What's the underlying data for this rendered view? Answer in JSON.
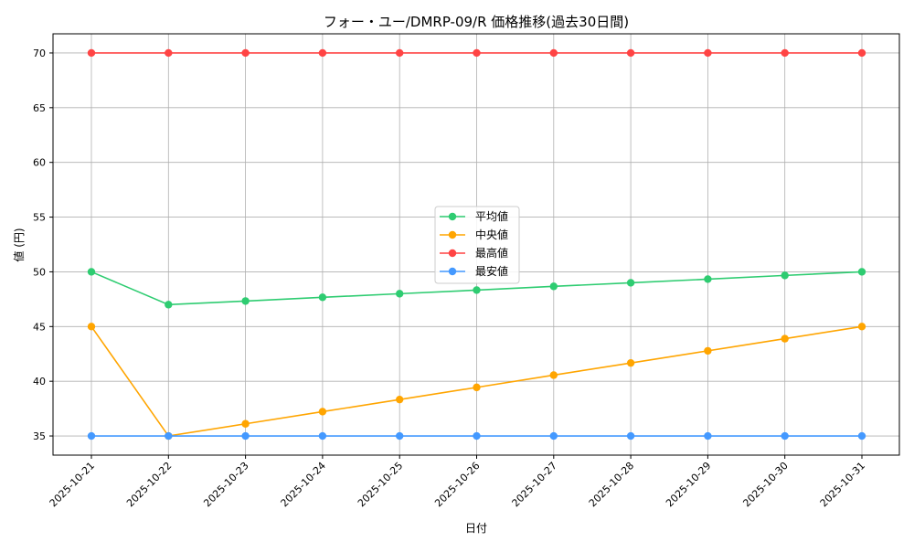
{
  "chart_data": {
    "type": "line",
    "title": "フォー・ユー/DMRP-09/R 価格推移(過去30日間)",
    "xlabel": "日付",
    "ylabel": "値 (円)",
    "ylim": [
      33.25,
      71.75
    ],
    "yticks": [
      35,
      40,
      45,
      50,
      55,
      60,
      65,
      70
    ],
    "grid": true,
    "legend_position": "center",
    "categories": [
      "2025-10-21",
      "2025-10-22",
      "2025-10-23",
      "2025-10-24",
      "2025-10-25",
      "2025-10-26",
      "2025-10-27",
      "2025-10-28",
      "2025-10-29",
      "2025-10-30",
      "2025-10-31"
    ],
    "series": [
      {
        "name": "平均値",
        "color": "#2ecc71",
        "values": [
          50,
          47,
          47.33,
          47.67,
          48,
          48.33,
          48.67,
          49,
          49.33,
          49.67,
          50
        ]
      },
      {
        "name": "中央値",
        "color": "#ffa500",
        "values": [
          45,
          35,
          36.11,
          37.22,
          38.33,
          39.44,
          40.56,
          41.67,
          42.78,
          43.89,
          45
        ]
      },
      {
        "name": "最高値",
        "color": "#ff4444",
        "values": [
          70,
          70,
          70,
          70,
          70,
          70,
          70,
          70,
          70,
          70,
          70
        ]
      },
      {
        "name": "最安値",
        "color": "#4499ff",
        "values": [
          35,
          35,
          35,
          35,
          35,
          35,
          35,
          35,
          35,
          35,
          35
        ]
      }
    ]
  }
}
